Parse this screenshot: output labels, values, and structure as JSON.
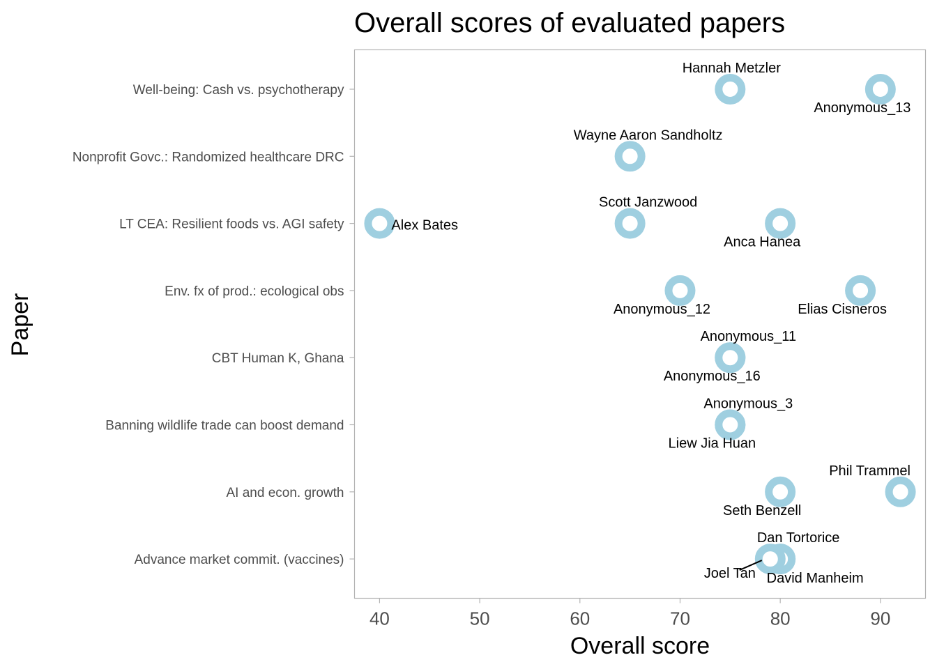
{
  "chart_data": {
    "type": "scatter",
    "title": "Overall scores of evaluated papers",
    "xlabel": "Overall score",
    "ylabel": "Paper",
    "xlim": [
      37.5,
      94.5
    ],
    "xticks": [
      40,
      50,
      60,
      70,
      80,
      90
    ],
    "grid": false,
    "marker_color": "#9fcfe0",
    "categories": [
      "Well-being: Cash vs. psychotherapy",
      "Nonprofit Govc.: Randomized healthcare DRC",
      "LT CEA: Resilient foods vs. AGI safety",
      "Env. fx of prod.: ecological obs",
      "CBT Human K, Ghana",
      "Banning wildlife trade can boost demand",
      "AI and econ. growth",
      "Advance market commit. (vaccines)"
    ],
    "points": [
      {
        "paper": "Well-being: Cash vs. psychotherapy",
        "x": 75,
        "label": "Hannah Metzler",
        "pos": "above"
      },
      {
        "paper": "Well-being: Cash vs. psychotherapy",
        "x": 90,
        "label": "Anonymous_13",
        "pos": "below"
      },
      {
        "paper": "Nonprofit Govc.: Randomized healthcare DRC",
        "x": 65,
        "label": "Wayne Aaron Sandholtz",
        "pos": "above"
      },
      {
        "paper": "LT CEA: Resilient foods vs. AGI safety",
        "x": 40,
        "label": "Alex Bates",
        "pos": "right"
      },
      {
        "paper": "LT CEA: Resilient foods vs. AGI safety",
        "x": 65,
        "label": "Scott Janzwood",
        "pos": "above"
      },
      {
        "paper": "LT CEA: Resilient foods vs. AGI safety",
        "x": 80,
        "label": "Anca Hanea",
        "pos": "below"
      },
      {
        "paper": "Env. fx of prod.: ecological obs",
        "x": 70,
        "label": "Anonymous_12",
        "pos": "below"
      },
      {
        "paper": "Env. fx of prod.: ecological obs",
        "x": 88,
        "label": "Elias Cisneros",
        "pos": "below"
      },
      {
        "paper": "CBT Human K, Ghana",
        "x": 75,
        "label": "Anonymous_11",
        "pos": "above"
      },
      {
        "paper": "CBT Human K, Ghana",
        "x": 75,
        "label": "Anonymous_16",
        "pos": "below"
      },
      {
        "paper": "Banning wildlife trade can boost demand",
        "x": 75,
        "label": "Anonymous_3",
        "pos": "above"
      },
      {
        "paper": "Banning wildlife trade can boost demand",
        "x": 75,
        "label": "Liew Jia Huan",
        "pos": "below"
      },
      {
        "paper": "AI and econ. growth",
        "x": 92,
        "label": "Phil Trammel",
        "pos": "above"
      },
      {
        "paper": "AI and econ. growth",
        "x": 80,
        "label": "Seth Benzell",
        "pos": "below"
      },
      {
        "paper": "Advance market commit. (vaccines)",
        "x": 80,
        "label": "Dan Tortorice",
        "pos": "above"
      },
      {
        "paper": "Advance market commit. (vaccines)",
        "x": 80,
        "label": "David Manheim",
        "pos": "below"
      },
      {
        "paper": "Advance market commit. (vaccines)",
        "x": 79,
        "label": "Joel Tan",
        "pos": "below-left"
      }
    ]
  }
}
